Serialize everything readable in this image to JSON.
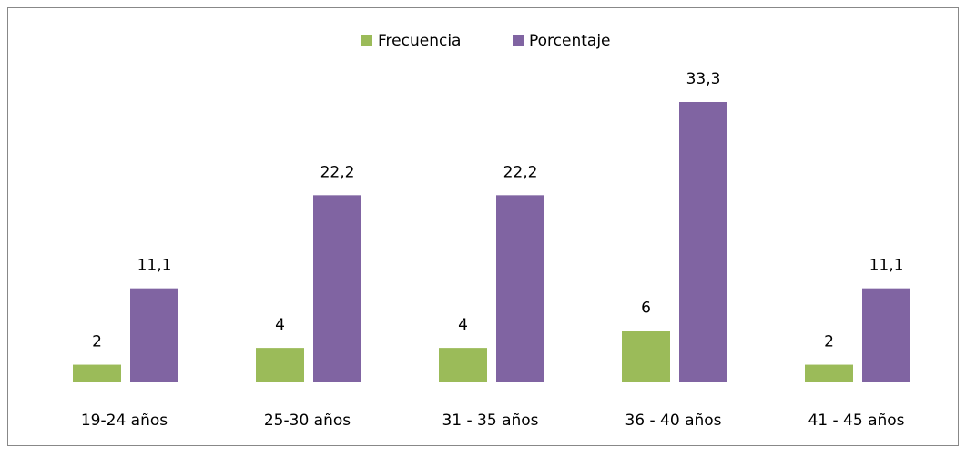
{
  "chart_data": {
    "type": "bar",
    "categories": [
      "19-24 años",
      "25-30 años",
      "31 - 35 años",
      "36 - 40 años",
      "41 - 45 años"
    ],
    "series": [
      {
        "name": "Frecuencia",
        "color": "#9bbb59",
        "values": [
          2,
          4,
          4,
          6,
          2
        ]
      },
      {
        "name": "Porcentaje",
        "color": "#8064a2",
        "values": [
          11.1,
          22.2,
          22.2,
          33.3,
          11.1
        ],
        "value_labels": [
          "11,1",
          "22,2",
          "22,2",
          "33,3",
          "11,1"
        ]
      }
    ],
    "legend": "top"
  }
}
